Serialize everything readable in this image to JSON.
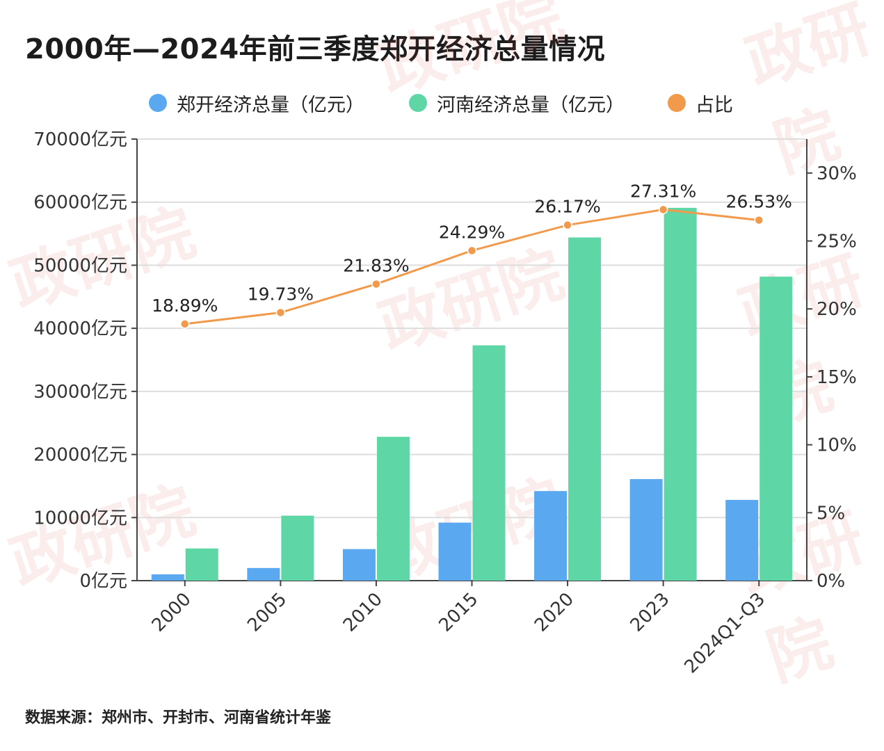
{
  "page": {
    "title": "2000年—2024年前三季度郑开经济总量情况",
    "source": "数据来源：郑州市、开封市、河南省统计年鉴"
  },
  "colors": {
    "series_zk": "#5aa9f0",
    "series_hn": "#5fd6a6",
    "ratio": "#f29a4c",
    "grid": "#dddddd",
    "axis": "#444444"
  },
  "chart_data": {
    "type": "bar",
    "title": "2000年—2024年前三季度郑开经济总量情况",
    "categories": [
      "2000",
      "2005",
      "2010",
      "2015",
      "2020",
      "2023",
      "2024Q1-Q3"
    ],
    "series": [
      {
        "name": "郑开经济总量（亿元）",
        "kind": "bar",
        "axis": "left",
        "values": [
          1000,
          2000,
          5000,
          9200,
          14200,
          16100,
          12800
        ]
      },
      {
        "name": "河南经济总量（亿元）",
        "kind": "bar",
        "axis": "left",
        "values": [
          5100,
          10300,
          22800,
          37300,
          54400,
          59100,
          48200
        ]
      },
      {
        "name": "占比",
        "kind": "line",
        "axis": "right",
        "values": [
          18.89,
          19.73,
          21.83,
          24.29,
          26.17,
          27.31,
          26.53
        ],
        "labels": [
          "18.89%",
          "19.73%",
          "21.83%",
          "24.29%",
          "26.17%",
          "27.31%",
          "26.53%"
        ]
      }
    ],
    "left_axis": {
      "ylim": [
        0,
        70000
      ],
      "ticks": [
        0,
        10000,
        20000,
        30000,
        40000,
        50000,
        60000,
        70000
      ],
      "tick_labels": [
        "0亿元",
        "10000亿元",
        "20000亿元",
        "30000亿元",
        "40000亿元",
        "50000亿元",
        "60000亿元",
        "70000亿元"
      ]
    },
    "right_axis": {
      "ylim": [
        0,
        32.5
      ],
      "ticks": [
        0,
        5,
        10,
        15,
        20,
        25,
        30
      ],
      "tick_labels": [
        "0%",
        "5%",
        "10%",
        "15%",
        "20%",
        "25%",
        "30%"
      ]
    },
    "legend_position": "top-center",
    "grid": true
  },
  "watermark": {
    "text": "政研院"
  }
}
